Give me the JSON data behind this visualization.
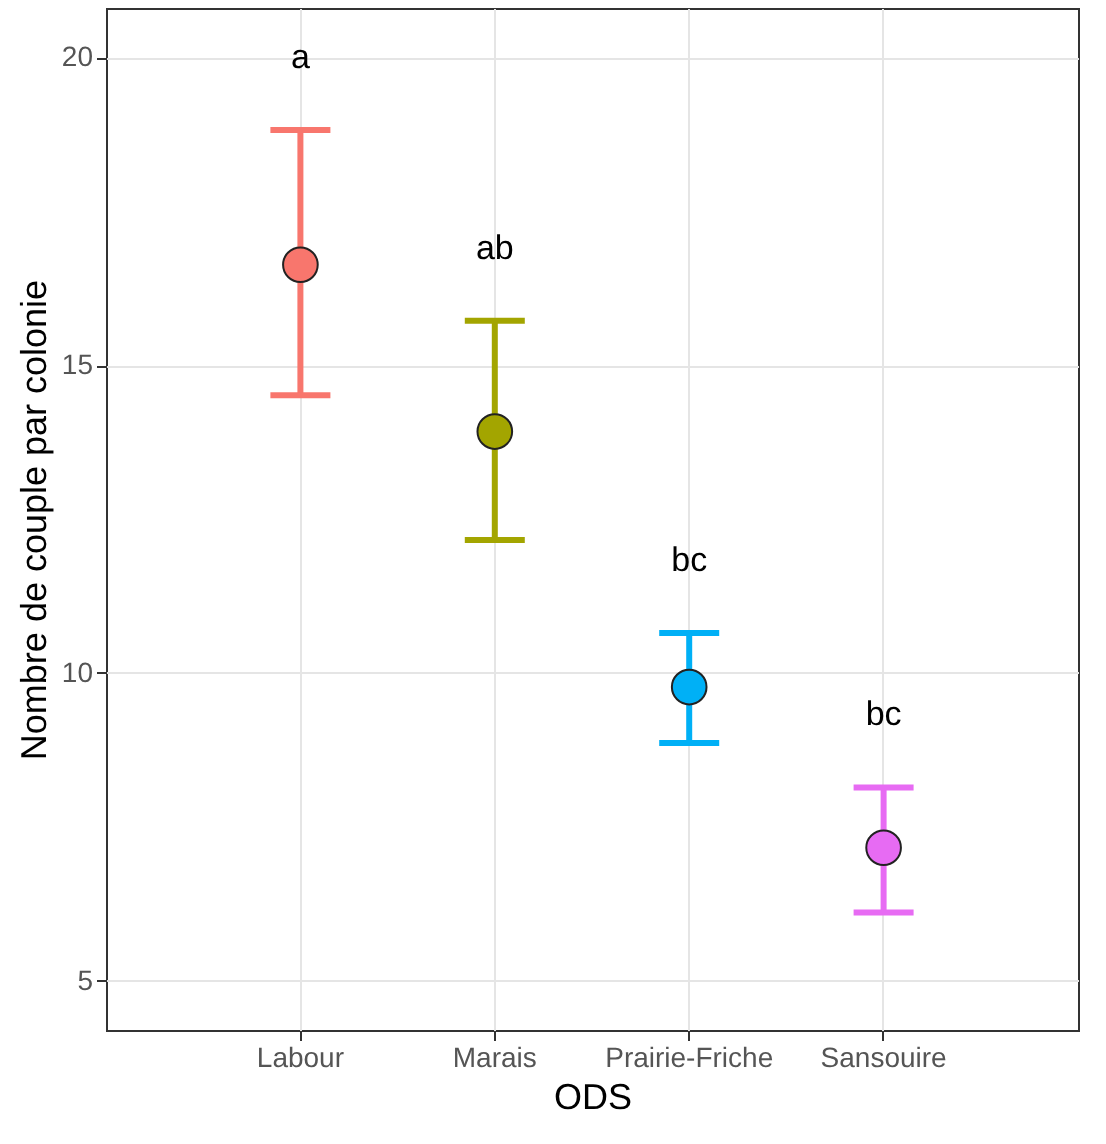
{
  "chart_data": {
    "type": "scatter",
    "xlabel": "ODS",
    "ylabel": "Nombre de couple par colonie",
    "categories": [
      "Labour",
      "Marais",
      "Prairie-Friche",
      "Sansouire"
    ],
    "values": [
      16.63,
      13.92,
      9.77,
      7.16
    ],
    "colors": [
      "#f8766d",
      "#a3a500",
      "#00b0f6",
      "#e76bf3"
    ],
    "errors": [
      [
        14.51,
        18.82
      ],
      [
        12.16,
        15.72
      ],
      [
        8.86,
        10.65
      ],
      [
        6.11,
        8.14
      ]
    ],
    "ylim": [
      4.2,
      20.8
    ],
    "yticks": [
      5,
      10,
      15,
      20
    ],
    "grid": true,
    "marker": "circle",
    "annotations": [
      "a",
      "ab",
      "bc",
      "bc"
    ]
  }
}
